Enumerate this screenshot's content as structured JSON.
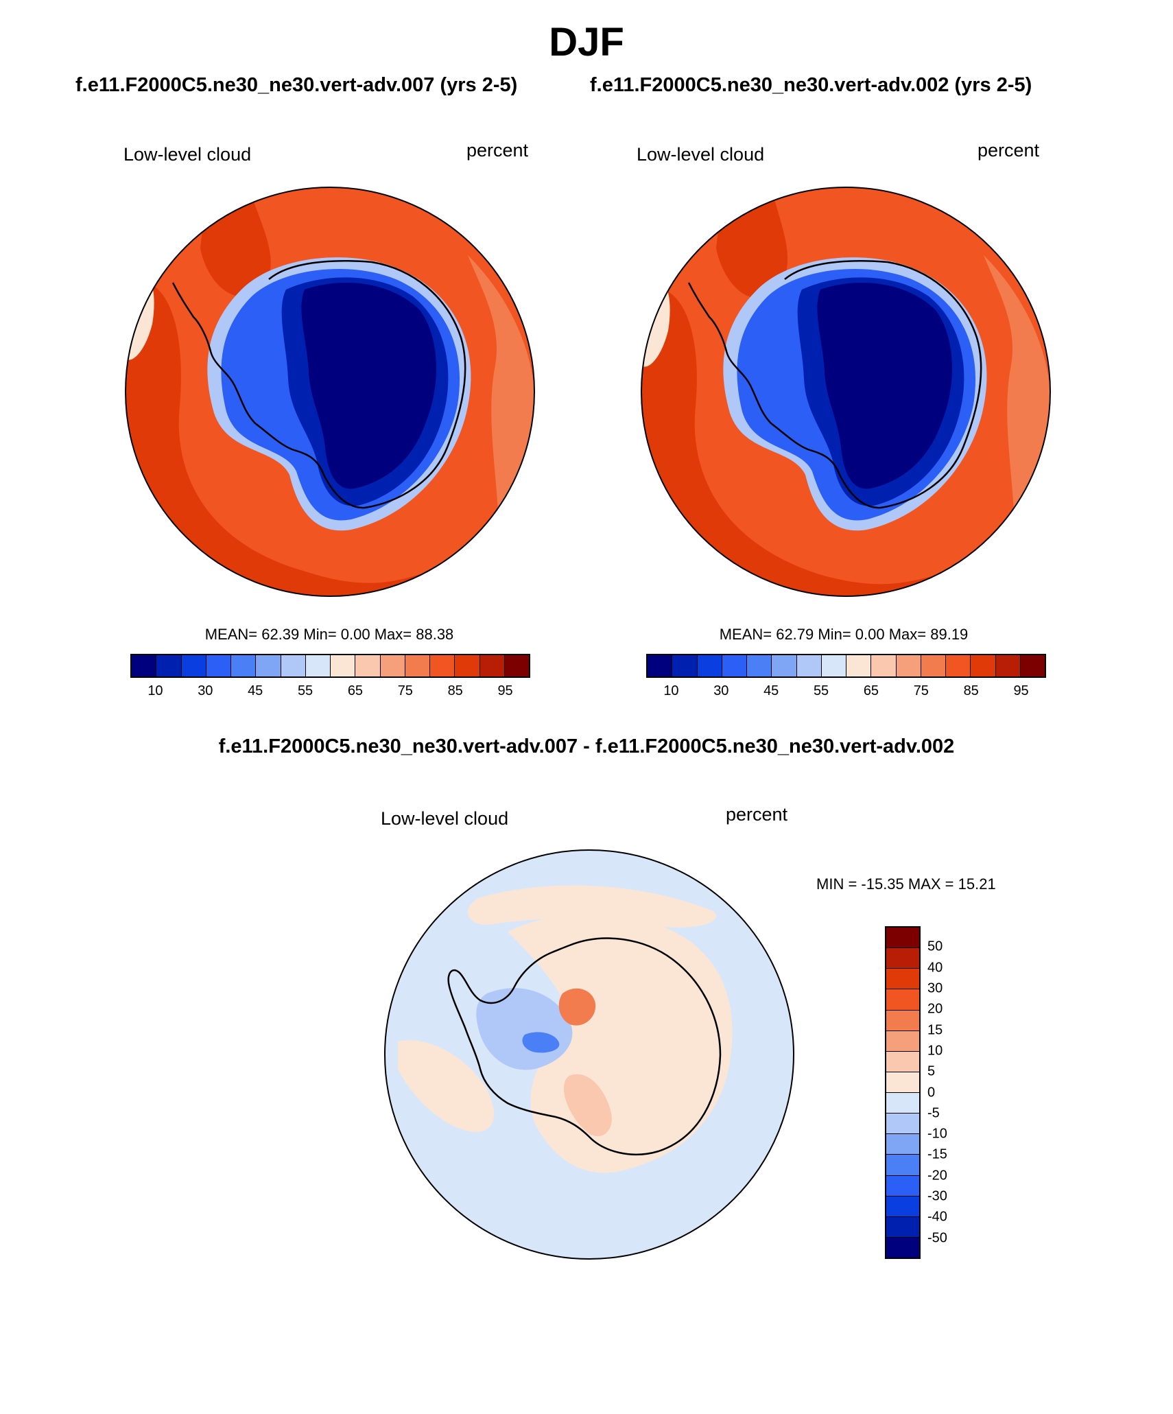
{
  "figure": {
    "season": "DJF",
    "case1_title": "f.e11.F2000C5.ne30_ne30.vert-adv.007 (yrs 2-5)",
    "case2_title": "f.e11.F2000C5.ne30_ne30.vert-adv.002 (yrs 2-5)",
    "diff_title": "f.e11.F2000C5.ne30_ne30.vert-adv.007 - f.e11.F2000C5.ne30_ne30.vert-adv.002"
  },
  "panels": [
    {
      "variable": "Low-level cloud",
      "units": "percent",
      "stats": "MEAN=  62.39  Min=   0.00  Max=  88.38"
    },
    {
      "variable": "Low-level cloud",
      "units": "percent",
      "stats": "MEAN=  62.79  Min=   0.00  Max=  89.19"
    },
    {
      "variable": "Low-level cloud",
      "units": "percent",
      "stats": "MIN = -15.35 MAX =  15.21"
    }
  ],
  "colorbar_abs": {
    "tick_labels": [
      "10",
      "30",
      "45",
      "55",
      "65",
      "75",
      "85",
      "95"
    ],
    "colors": [
      "#00007f",
      "#0020b0",
      "#0a3ee0",
      "#2c5ff5",
      "#4a7ff5",
      "#7fa6f5",
      "#b0c8f7",
      "#d8e6fa",
      "#fbe6d6",
      "#f9c8ae",
      "#f5a07a",
      "#f27c4e",
      "#f05522",
      "#e03a08",
      "#b81e06",
      "#7c0000"
    ]
  },
  "colorbar_diff": {
    "tick_labels": [
      "50",
      "40",
      "30",
      "20",
      "15",
      "10",
      "5",
      "0",
      "-5",
      "-10",
      "-15",
      "-20",
      "-30",
      "-40",
      "-50"
    ],
    "colors": [
      "#7c0000",
      "#b81e06",
      "#e03a08",
      "#f05522",
      "#f27c4e",
      "#f5a07a",
      "#f9c8ae",
      "#fbe6d6",
      "#d8e6fa",
      "#b0c8f7",
      "#7fa6f5",
      "#4a7ff5",
      "#2c5ff5",
      "#0a3ee0",
      "#0020b0",
      "#00007f"
    ]
  },
  "map_colors": {
    "ocean_high": "#f05522",
    "ocean_very_high": "#e03a08",
    "ocean_mid": "#f27c4e",
    "ocean_low": "#f5a07a",
    "rim_pale": "#fbe6d6",
    "ice_edge": "#b0c8f7",
    "ice_mid": "#2c5ff5",
    "ice_deep": "#0020b0",
    "ice_core": "#00007f",
    "diff_bg": "#d8e6fa",
    "diff_pos": "#fbe6d6",
    "diff_pos2": "#f9c8ae",
    "diff_pos3": "#f27c4e",
    "diff_neg": "#b0c8f7",
    "diff_neg2": "#4a7ff5"
  }
}
